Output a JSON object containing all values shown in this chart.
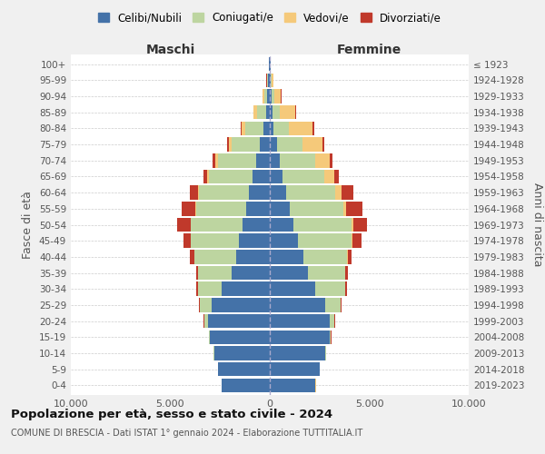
{
  "age_groups": [
    "0-4",
    "5-9",
    "10-14",
    "15-19",
    "20-24",
    "25-29",
    "30-34",
    "35-39",
    "40-44",
    "45-49",
    "50-54",
    "55-59",
    "60-64",
    "65-69",
    "70-74",
    "75-79",
    "80-84",
    "85-89",
    "90-94",
    "95-99",
    "100+"
  ],
  "birth_years": [
    "2019-2023",
    "2014-2018",
    "2009-2013",
    "2004-2008",
    "1999-2003",
    "1994-1998",
    "1989-1993",
    "1984-1988",
    "1979-1983",
    "1974-1978",
    "1969-1973",
    "1964-1968",
    "1959-1963",
    "1954-1958",
    "1949-1953",
    "1944-1948",
    "1939-1943",
    "1934-1938",
    "1929-1933",
    "1924-1928",
    "≤ 1923"
  ],
  "maschi": {
    "celibi": [
      2400,
      2600,
      2800,
      3000,
      3100,
      2900,
      2400,
      1900,
      1700,
      1550,
      1350,
      1200,
      1050,
      850,
      700,
      500,
      320,
      200,
      130,
      80,
      30
    ],
    "coniugati": [
      5,
      10,
      20,
      50,
      200,
      600,
      1200,
      1700,
      2100,
      2400,
      2600,
      2500,
      2500,
      2200,
      1900,
      1400,
      900,
      450,
      150,
      40,
      10
    ],
    "vedovi": [
      5,
      5,
      5,
      5,
      5,
      5,
      5,
      5,
      5,
      10,
      20,
      30,
      50,
      80,
      120,
      150,
      200,
      150,
      80,
      30,
      5
    ],
    "divorziati": [
      2,
      5,
      5,
      10,
      20,
      50,
      80,
      100,
      200,
      400,
      700,
      700,
      400,
      200,
      150,
      100,
      50,
      30,
      20,
      10,
      2
    ]
  },
  "femmine": {
    "nubili": [
      2300,
      2500,
      2800,
      3000,
      3000,
      2800,
      2300,
      1900,
      1700,
      1400,
      1200,
      1000,
      800,
      650,
      500,
      350,
      200,
      150,
      100,
      60,
      30
    ],
    "coniugate": [
      5,
      10,
      30,
      70,
      250,
      750,
      1500,
      1900,
      2200,
      2700,
      2900,
      2700,
      2500,
      2100,
      1800,
      1300,
      750,
      350,
      120,
      30,
      10
    ],
    "vedove": [
      5,
      5,
      5,
      5,
      5,
      5,
      10,
      10,
      15,
      40,
      80,
      150,
      300,
      500,
      700,
      1000,
      1200,
      800,
      350,
      80,
      5
    ],
    "divorziate": [
      2,
      5,
      5,
      10,
      15,
      40,
      80,
      100,
      200,
      450,
      700,
      800,
      600,
      200,
      150,
      100,
      80,
      30,
      20,
      10,
      2
    ]
  },
  "colors": {
    "celibi": "#4472a8",
    "coniugati": "#bdd5a0",
    "vedovi": "#f5c97a",
    "divorziati": "#c0392b"
  },
  "title1": "Popolazione per età, sesso e stato civile - 2024",
  "title2": "COMUNE DI BRESCIA - Dati ISTAT 1° gennaio 2024 - Elaborazione TUTTITALIA.IT",
  "xlabel_left": "Maschi",
  "xlabel_right": "Femmine",
  "ylabel_left": "Fasce di età",
  "ylabel_right": "Anni di nascita",
  "xlim": 10000,
  "bg_color": "#f0f0f0",
  "plot_bg": "#ffffff",
  "legend_labels": [
    "Celibi/Nubili",
    "Coniugati/e",
    "Vedovi/e",
    "Divorziati/e"
  ]
}
